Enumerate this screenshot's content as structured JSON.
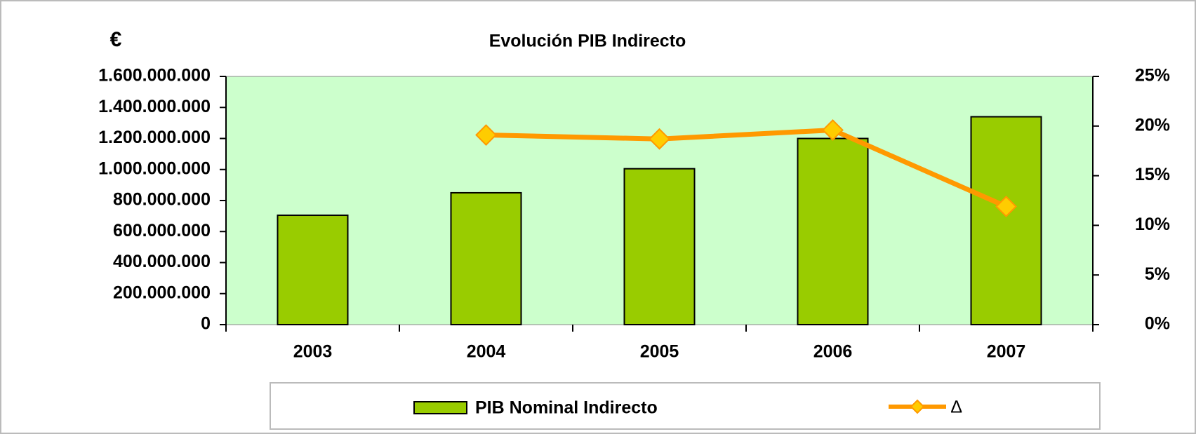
{
  "chart_data": {
    "type": "bar_line",
    "title": "Evolución PIB Indirecto",
    "y_label": "€",
    "categories": [
      "2003",
      "2004",
      "2005",
      "2006",
      "2007"
    ],
    "series": [
      {
        "name": "PIB Nominal Indirecto",
        "type": "bar",
        "color": "#99cc00",
        "values": [
          705000000,
          850000000,
          1005000000,
          1200000000,
          1340000000
        ]
      },
      {
        "name": "∆",
        "type": "line",
        "axis": "y2",
        "color": "#ff9900",
        "marker_color": "#ffcc00",
        "values": [
          null,
          19.1,
          18.7,
          19.6,
          11.9
        ]
      }
    ],
    "ylim": [
      0,
      1600000000
    ],
    "yticks": [
      0,
      {
        "value": 200000000,
        "label": "200.000.000"
      },
      {
        "value": 400000000,
        "label": "400.000.000"
      },
      {
        "value": 600000000,
        "label": "600.000.000"
      },
      {
        "value": 800000000,
        "label": "800.000.000"
      },
      {
        "value": 1000000000,
        "label": "1.000.000.000"
      },
      {
        "value": 1200000000,
        "label": "1.200.000.000"
      },
      {
        "value": 1400000000,
        "label": "1.400.000.000"
      },
      {
        "value": 1600000000,
        "label": "1.600.000.000"
      }
    ],
    "y2lim": [
      0,
      25
    ],
    "y2ticks": [
      {
        "value": 0,
        "label": "0%"
      },
      {
        "value": 5,
        "label": "5%"
      },
      {
        "value": 10,
        "label": "10%"
      },
      {
        "value": 15,
        "label": "15%"
      },
      {
        "value": 20,
        "label": "20%"
      },
      {
        "value": 25,
        "label": "25%"
      }
    ],
    "plot_background": "#ccffcc",
    "legend": "bottom"
  }
}
